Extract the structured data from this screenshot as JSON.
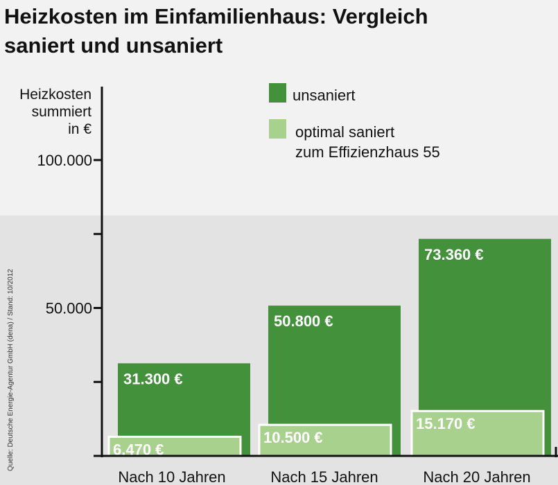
{
  "chart_data": {
    "type": "bar",
    "title": "Heizkosten im Einfamilienhaus: Vergleich saniert und unsaniert",
    "title_lines": [
      "Heizkosten im Einfamilienhaus: Vergleich",
      "saniert und unsaniert"
    ],
    "ylabel_lines": [
      "Heizkosten",
      "summiert",
      "in €"
    ],
    "categories": [
      "Nach 10 Jahren",
      "Nach 15 Jahren",
      "Nach 20 Jahren"
    ],
    "series": [
      {
        "name": "unsaniert",
        "color": "#43913a",
        "values": [
          31300,
          50800,
          73360
        ],
        "labels": [
          "31.300 €",
          "50.800 €",
          "73.360 €"
        ]
      },
      {
        "name": "optimal saniert zum Effizienzhaus 55",
        "legend_lines": [
          "optimal saniert",
          "zum Effizienzhaus 55"
        ],
        "color": "#a9d18e",
        "values": [
          6470,
          10500,
          15170
        ],
        "labels": [
          "6.470 €",
          "10.500 €",
          "15.170 €"
        ]
      }
    ],
    "ylim": [
      0,
      100000
    ],
    "yticks": [
      0,
      25000,
      50000,
      75000,
      100000
    ],
    "ytick_labels": [
      "",
      "",
      "50.000",
      "",
      "100.000"
    ],
    "grid": false,
    "legend_position": "top-center",
    "source": "Quelle: Deutsche Energie-Agentur GmbH (dena) / Stand: 10/2012"
  },
  "colors": {
    "page_background": "#f2f2f2",
    "plot_band": "#e3e3e3",
    "axis": "#111111"
  }
}
